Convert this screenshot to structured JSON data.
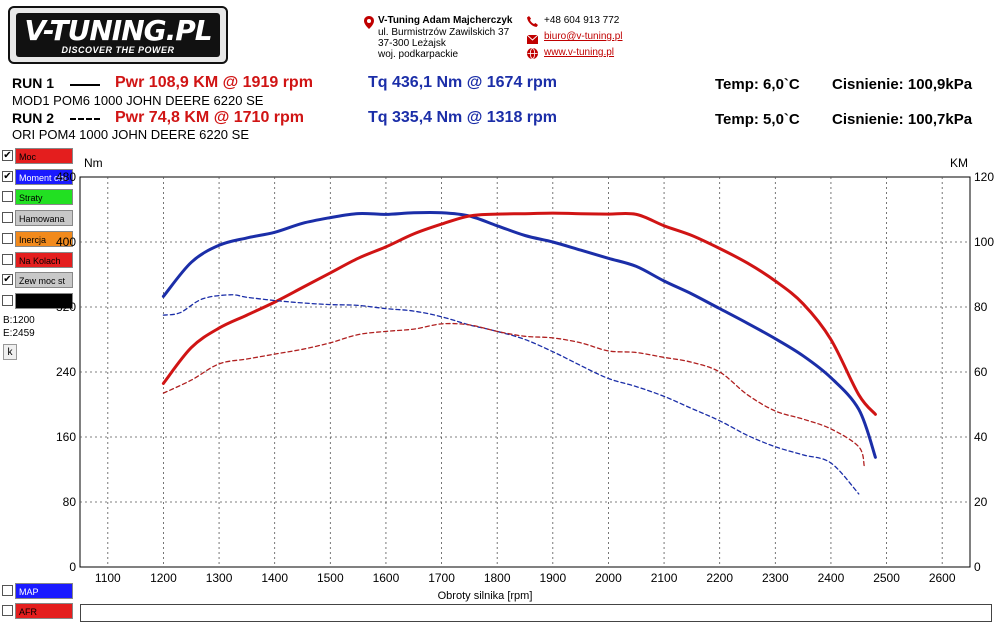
{
  "logo": {
    "text": "V-TUNING.PL",
    "tagline": "DISCOVER THE POWER"
  },
  "contact": {
    "company": "V-Tuning Adam Majcherczyk",
    "street": "ul. Burmistrzów Zawilskich 37",
    "city": "37-300 Leżajsk",
    "region": "woj. podkarpackie",
    "phone": "+48 604 913 772",
    "email": "biuro@v-tuning.pl",
    "web": "www.v-tuning.pl"
  },
  "runs": [
    {
      "label": "RUN 1",
      "pwr": "Pwr  108,9 KM @ 1919 rpm",
      "tq": "Tq 436,1 Nm @ 1674 rpm",
      "temp": "Temp: 6,0`C",
      "pressure": "Cisnienie: 100,9kPa",
      "desc": "MOD1 POM6 1000 JOHN DEERE 6220 SE"
    },
    {
      "label": "RUN 2",
      "pwr": "Pwr  74,8 KM @ 1710 rpm",
      "tq": "Tq 335,4 Nm @ 1318 rpm",
      "temp": "Temp: 5,0`C",
      "pressure": "Cisnienie: 100,7kPa",
      "desc": "ORI POM4 1000 JOHN DEERE 6220 SE"
    }
  ],
  "sidebar": {
    "items": [
      {
        "label": "Moc",
        "checked": true,
        "color": "#e41e1e"
      },
      {
        "label": "Moment obr.",
        "checked": true,
        "color": "#1a1aff"
      },
      {
        "label": "Straty",
        "checked": false,
        "color": "#22e022"
      },
      {
        "label": "Hamowana",
        "checked": false,
        "color": "#c8c8c8"
      },
      {
        "label": "Inercja",
        "checked": false,
        "color": "#f28a1c"
      },
      {
        "label": "Na Kolach",
        "checked": false,
        "color": "#e41e1e"
      },
      {
        "label": "Zew moc st",
        "checked": true,
        "color": "#c8c8c8"
      },
      {
        "label": "",
        "checked": false,
        "color": "#000000"
      }
    ],
    "b_value": "B:1200",
    "e_value": "E:2459",
    "k_button": "k",
    "bottom_items": [
      {
        "label": "MAP",
        "checked": false,
        "color": "#1a1aff"
      },
      {
        "label": "AFR",
        "checked": false,
        "color": "#e41e1e"
      }
    ]
  },
  "chart_data": {
    "type": "line",
    "xlabel": "Obroty silnika [rpm]",
    "ylabel_left": "Nm",
    "ylabel_right": "KM",
    "xlim": [
      1050,
      2650
    ],
    "xticks": [
      1100,
      1200,
      1300,
      1400,
      1500,
      1600,
      1700,
      1800,
      1900,
      2000,
      2100,
      2200,
      2300,
      2400,
      2500,
      2600
    ],
    "ylim_left": [
      0,
      480
    ],
    "yticks_left": [
      0,
      80,
      160,
      240,
      320,
      400,
      480
    ],
    "ylim_right": [
      0,
      120
    ],
    "yticks_right": [
      0,
      20,
      40,
      60,
      80,
      100,
      120
    ],
    "grid": true,
    "series": [
      {
        "name": "",
        "color": "#1b2ea8",
        "axis": "left",
        "dash": false,
        "x": [
          1200,
          1250,
          1300,
          1350,
          1400,
          1450,
          1500,
          1550,
          1600,
          1650,
          1700,
          1750,
          1800,
          1850,
          1900,
          1950,
          2000,
          2050,
          2100,
          2150,
          2200,
          2250,
          2300,
          2350,
          2400,
          2450,
          2480
        ],
        "y": [
          333,
          375,
          396,
          405,
          412,
          423,
          430,
          435,
          434,
          436,
          436,
          432,
          420,
          408,
          400,
          390,
          380,
          370,
          352,
          336,
          318,
          300,
          281,
          260,
          233,
          194,
          135
        ]
      },
      {
        "name": "",
        "color": "#d01414",
        "axis": "right",
        "dash": false,
        "x": [
          1200,
          1250,
          1300,
          1350,
          1400,
          1450,
          1500,
          1550,
          1600,
          1650,
          1700,
          1750,
          1800,
          1850,
          1900,
          1950,
          2000,
          2050,
          2100,
          2150,
          2200,
          2250,
          2300,
          2350,
          2400,
          2450,
          2480
        ],
        "y": [
          56.5,
          67.5,
          73.5,
          77.5,
          81.5,
          86,
          90.5,
          95,
          98.5,
          102.5,
          105.5,
          108,
          108.6,
          108.7,
          108.9,
          108.7,
          108.6,
          108.5,
          105,
          102,
          98,
          93.5,
          88,
          81,
          70,
          53,
          47
        ]
      },
      {
        "name": "",
        "color": "#1b2ea8",
        "axis": "left",
        "dash": true,
        "x": [
          1200,
          1230,
          1270,
          1320,
          1350,
          1400,
          1450,
          1500,
          1550,
          1600,
          1650,
          1700,
          1750,
          1800,
          1850,
          1900,
          1950,
          2000,
          2050,
          2100,
          2150,
          2200,
          2250,
          2300,
          2350,
          2400,
          2450
        ],
        "y": [
          310,
          313,
          330,
          335,
          332,
          328,
          325,
          323,
          322,
          318,
          315,
          308,
          298,
          290,
          280,
          265,
          248,
          232,
          222,
          210,
          195,
          180,
          162,
          148,
          138,
          128,
          90
        ]
      },
      {
        "name": "",
        "color": "#b02020",
        "axis": "right",
        "dash": true,
        "x": [
          1200,
          1250,
          1300,
          1350,
          1400,
          1450,
          1500,
          1550,
          1600,
          1650,
          1700,
          1750,
          1800,
          1850,
          1900,
          1950,
          2000,
          2050,
          2100,
          2150,
          2200,
          2250,
          2300,
          2350,
          2400,
          2450,
          2460
        ],
        "y": [
          53.5,
          57.5,
          62.5,
          64,
          65.5,
          67,
          69,
          71.5,
          72.5,
          73.2,
          74.8,
          74.5,
          72.5,
          71,
          70.5,
          69,
          66.5,
          66,
          64.5,
          63,
          60,
          53,
          48,
          45.5,
          42.5,
          37,
          31
        ]
      }
    ]
  }
}
